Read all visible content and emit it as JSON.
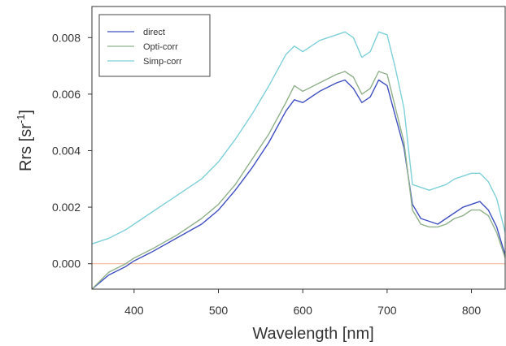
{
  "chart_data": {
    "type": "line",
    "xlabel": "Wavelength  [nm]",
    "ylabel_main": "Rrs  [sr",
    "ylabel_sup": "-1",
    "ylabel_close": "]",
    "xlim": [
      350,
      840
    ],
    "ylim": [
      -0.0009,
      0.0091
    ],
    "x_ticks": [
      400,
      500,
      600,
      700,
      800
    ],
    "x_tick_labels": [
      "400",
      "500",
      "600",
      "700",
      "800"
    ],
    "y_ticks": [
      0.0,
      0.002,
      0.004,
      0.006,
      0.008
    ],
    "y_tick_labels": [
      "0.000",
      "0.002",
      "0.004",
      "0.006",
      "0.008"
    ],
    "grid": false,
    "legend_position": "top-left",
    "reference_line": {
      "y": 0.0,
      "color": "#f2b8a0"
    },
    "x": [
      350,
      370,
      390,
      400,
      420,
      450,
      480,
      500,
      520,
      540,
      560,
      580,
      590,
      600,
      620,
      640,
      650,
      660,
      670,
      680,
      690,
      700,
      710,
      720,
      730,
      740,
      750,
      760,
      770,
      780,
      790,
      800,
      810,
      820,
      830,
      840
    ],
    "series": [
      {
        "name": "direct",
        "color": "#3f4fbf",
        "values": [
          -0.0009,
          -0.0004,
          -0.0001,
          0.0001,
          0.0004,
          0.0009,
          0.0014,
          0.0019,
          0.0026,
          0.0034,
          0.0043,
          0.0054,
          0.0058,
          0.0057,
          0.0061,
          0.0064,
          0.0065,
          0.0062,
          0.0057,
          0.0059,
          0.0065,
          0.0063,
          0.0052,
          0.0041,
          0.0021,
          0.0016,
          0.0015,
          0.0014,
          0.0016,
          0.0018,
          0.002,
          0.0021,
          0.0022,
          0.0019,
          0.0013,
          0.0003
        ]
      },
      {
        "name": "Opti-corr",
        "color": "#8fb08a",
        "values": [
          -0.0009,
          -0.0003,
          0.0,
          0.0002,
          0.0005,
          0.001,
          0.0016,
          0.0021,
          0.0028,
          0.0037,
          0.0046,
          0.0057,
          0.0063,
          0.0061,
          0.0064,
          0.0067,
          0.0068,
          0.0066,
          0.006,
          0.0062,
          0.0068,
          0.0067,
          0.0055,
          0.0043,
          0.0019,
          0.0014,
          0.0013,
          0.0013,
          0.0014,
          0.0016,
          0.0017,
          0.0019,
          0.0019,
          0.0017,
          0.0011,
          0.0002
        ]
      },
      {
        "name": "Simp-corr",
        "color": "#7fd0d8",
        "values": [
          0.0007,
          0.0009,
          0.0012,
          0.0014,
          0.0018,
          0.0024,
          0.003,
          0.0036,
          0.0044,
          0.0053,
          0.0063,
          0.0074,
          0.0077,
          0.0075,
          0.0079,
          0.0081,
          0.0082,
          0.008,
          0.0073,
          0.0075,
          0.0082,
          0.0081,
          0.0069,
          0.0055,
          0.0028,
          0.0027,
          0.0026,
          0.0027,
          0.0028,
          0.003,
          0.0031,
          0.0032,
          0.0032,
          0.0029,
          0.0023,
          0.0011
        ]
      }
    ]
  }
}
